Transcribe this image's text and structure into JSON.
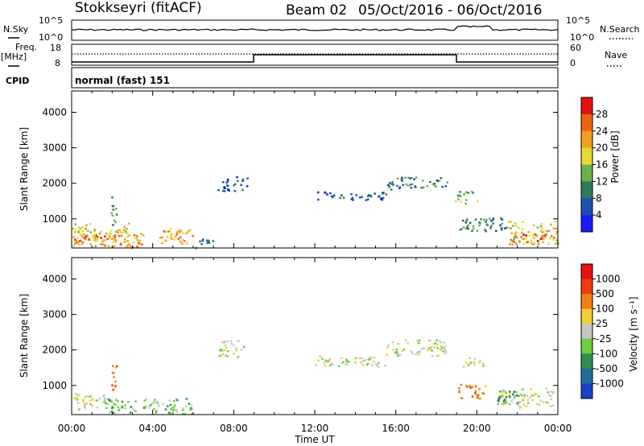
{
  "header": {
    "title": "Stokkseyri (fitACF)",
    "beam": "Beam 02",
    "date_range": "05/Oct/2016 - 06/Oct/2016"
  },
  "summary_panels": {
    "nsky_label": "N.Sky",
    "nsky_ticks": [
      "10^5",
      "10^0"
    ],
    "nsearch_label": "N.Search",
    "nsearch_ticks": [
      "10^5",
      "10^0"
    ],
    "freq_label": "Freq.",
    "freq_unit": "[MHz]",
    "freq_ticks": [
      "18",
      "8"
    ],
    "nave_label": "Nave",
    "nave_ticks": [
      "60",
      "0"
    ],
    "cpid_label": "CPID",
    "cpid_text": "normal (fast) 151"
  },
  "chart_data": [
    {
      "type": "heatmap",
      "panel": "power",
      "ylabel": "Slant Range [km]",
      "ylim": [
        180,
        4600
      ],
      "yticks": [
        "1000",
        "2000",
        "3000",
        "4000"
      ],
      "colorbar_label": "Power [dB]",
      "colorbar_ticks": [
        "4",
        "8",
        "12",
        "16",
        "20",
        "24",
        "28"
      ],
      "colors": [
        "#1a1aff",
        "#1e4fb3",
        "#2f7a5a",
        "#6fae4f",
        "#e6d930",
        "#f2a020",
        "#f06010",
        "#e81010"
      ],
      "blobs": [
        {
          "t": [
            0.0,
            1.8
          ],
          "r": [
            300,
            600
          ],
          "level": 6
        },
        {
          "t": [
            0.0,
            2.8
          ],
          "r": [
            250,
            900
          ],
          "level": 4
        },
        {
          "t": [
            1.8,
            3.5
          ],
          "r": [
            200,
            650
          ],
          "level": 5
        },
        {
          "t": [
            1.9,
            2.2
          ],
          "r": [
            800,
            1650
          ],
          "level": 2
        },
        {
          "t": [
            4.3,
            6.0
          ],
          "r": [
            250,
            750
          ],
          "level": 5
        },
        {
          "t": [
            6.0,
            7.0
          ],
          "r": [
            200,
            450
          ],
          "level": 2
        },
        {
          "t": [
            7.2,
            8.7
          ],
          "r": [
            1800,
            2200
          ],
          "level": 1
        },
        {
          "t": [
            12.0,
            15.5
          ],
          "r": [
            1550,
            1800
          ],
          "level": 1
        },
        {
          "t": [
            15.5,
            18.5
          ],
          "r": [
            1850,
            2200
          ],
          "level": 2
        },
        {
          "t": [
            18.9,
            20.0
          ],
          "r": [
            1450,
            1800
          ],
          "level": 3
        },
        {
          "t": [
            19.0,
            21.5
          ],
          "r": [
            650,
            1050
          ],
          "level": 2
        },
        {
          "t": [
            21.5,
            24.0
          ],
          "r": [
            300,
            950
          ],
          "level": 4
        },
        {
          "t": [
            21.6,
            23.8
          ],
          "r": [
            350,
            600
          ],
          "level": 6
        }
      ]
    },
    {
      "type": "heatmap",
      "panel": "velocity",
      "ylabel": "Slant Range [km]",
      "ylim": [
        180,
        4600
      ],
      "yticks": [
        "1000",
        "2000",
        "3000",
        "4000"
      ],
      "xlabel": "Time UT",
      "xticks": [
        "00:00",
        "04:00",
        "08:00",
        "12:00",
        "16:00",
        "20:00",
        "00:00"
      ],
      "colorbar_label": "Velocity [m s⁻¹]",
      "colorbar_ticks": [
        "1000",
        "500",
        "100",
        "25",
        "-25",
        "-100",
        "-500",
        "-1000"
      ],
      "colors": [
        "#1a3fcc",
        "#1e6f9a",
        "#2f8f4f",
        "#6fcf3f",
        "#c8c8c0",
        "#f2d030",
        "#f28010",
        "#f03a10",
        "#e81010"
      ],
      "blobs": [
        {
          "t": [
            0.0,
            1.8
          ],
          "r": [
            350,
            800
          ],
          "level": 4
        },
        {
          "t": [
            1.5,
            3.2
          ],
          "r": [
            250,
            700
          ],
          "level": 3
        },
        {
          "t": [
            1.9,
            2.2
          ],
          "r": [
            850,
            1650
          ],
          "level": 6
        },
        {
          "t": [
            3.5,
            6.0
          ],
          "r": [
            220,
            650
          ],
          "level": 3
        },
        {
          "t": [
            7.2,
            8.5
          ],
          "r": [
            1800,
            2300
          ],
          "level": 4
        },
        {
          "t": [
            12.0,
            15.5
          ],
          "r": [
            1550,
            1850
          ],
          "level": 4
        },
        {
          "t": [
            15.5,
            18.5
          ],
          "r": [
            1850,
            2300
          ],
          "level": 4
        },
        {
          "t": [
            19.0,
            20.5
          ],
          "r": [
            650,
            1050
          ],
          "level": 6
        },
        {
          "t": [
            19.3,
            20.3
          ],
          "r": [
            1500,
            1800
          ],
          "level": 4
        },
        {
          "t": [
            21.0,
            23.8
          ],
          "r": [
            400,
            950
          ],
          "level": 4
        },
        {
          "t": [
            21.0,
            22.0
          ],
          "r": [
            500,
            900
          ],
          "level": 2
        }
      ]
    }
  ]
}
